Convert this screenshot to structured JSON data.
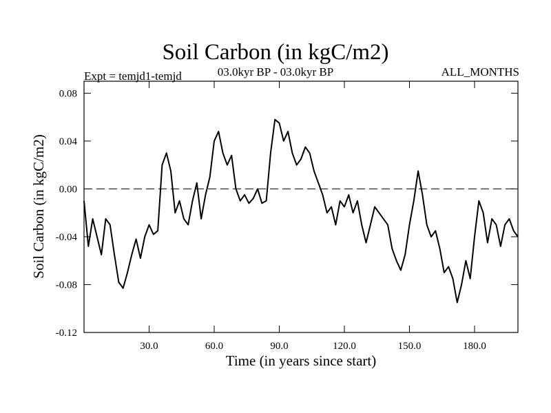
{
  "chart_data": {
    "type": "line",
    "title": "Soil Carbon (in kgC/m2)",
    "subtitle_left": "Expt = temjd1-temjd",
    "subtitle_center": "03.0kyr BP - 03.0kyr BP",
    "subtitle_right": "ALL_MONTHS",
    "xlabel": "Time (in years since start)",
    "ylabel": "Soil Carbon (in kgC/m2)",
    "xlim": [
      0,
      200
    ],
    "ylim": [
      -0.12,
      0.09
    ],
    "x_ticks": [
      30,
      60,
      90,
      120,
      150,
      180
    ],
    "x_tick_labels": [
      "30.0",
      "60.0",
      "90.0",
      "120.0",
      "150.0",
      "180.0"
    ],
    "y_ticks": [
      -0.12,
      -0.08,
      -0.04,
      0.0,
      0.04,
      0.08
    ],
    "y_tick_labels": [
      "-0.12",
      "-0.08",
      "-0.04",
      "0.00",
      "0.04",
      "0.08"
    ],
    "reference_line": {
      "y": 0.0,
      "style": "dashed"
    },
    "series": [
      {
        "color": "#000000",
        "points": [
          [
            0,
            -0.01
          ],
          [
            2,
            -0.048
          ],
          [
            4,
            -0.025
          ],
          [
            6,
            -0.04
          ],
          [
            8,
            -0.055
          ],
          [
            10,
            -0.025
          ],
          [
            12,
            -0.03
          ],
          [
            14,
            -0.055
          ],
          [
            16,
            -0.078
          ],
          [
            18,
            -0.083
          ],
          [
            20,
            -0.07
          ],
          [
            22,
            -0.055
          ],
          [
            24,
            -0.042
          ],
          [
            26,
            -0.058
          ],
          [
            28,
            -0.04
          ],
          [
            30,
            -0.03
          ],
          [
            32,
            -0.038
          ],
          [
            34,
            -0.035
          ],
          [
            36,
            0.02
          ],
          [
            38,
            0.03
          ],
          [
            40,
            0.015
          ],
          [
            42,
            -0.02
          ],
          [
            44,
            -0.01
          ],
          [
            46,
            -0.025
          ],
          [
            48,
            -0.03
          ],
          [
            50,
            -0.01
          ],
          [
            52,
            0.005
          ],
          [
            54,
            -0.025
          ],
          [
            56,
            -0.005
          ],
          [
            58,
            0.01
          ],
          [
            60,
            0.04
          ],
          [
            62,
            0.048
          ],
          [
            64,
            0.03
          ],
          [
            66,
            0.02
          ],
          [
            68,
            0.028
          ],
          [
            70,
            0.0
          ],
          [
            72,
            -0.01
          ],
          [
            74,
            -0.005
          ],
          [
            76,
            -0.012
          ],
          [
            78,
            -0.008
          ],
          [
            80,
            0.0
          ],
          [
            82,
            -0.012
          ],
          [
            84,
            -0.01
          ],
          [
            86,
            0.03
          ],
          [
            88,
            0.058
          ],
          [
            90,
            0.055
          ],
          [
            92,
            0.04
          ],
          [
            94,
            0.048
          ],
          [
            96,
            0.03
          ],
          [
            98,
            0.02
          ],
          [
            100,
            0.025
          ],
          [
            102,
            0.035
          ],
          [
            104,
            0.03
          ],
          [
            106,
            0.015
          ],
          [
            108,
            0.005
          ],
          [
            110,
            -0.005
          ],
          [
            112,
            -0.02
          ],
          [
            114,
            -0.015
          ],
          [
            116,
            -0.03
          ],
          [
            118,
            -0.01
          ],
          [
            120,
            -0.015
          ],
          [
            122,
            -0.005
          ],
          [
            124,
            -0.02
          ],
          [
            126,
            -0.01
          ],
          [
            128,
            -0.03
          ],
          [
            130,
            -0.045
          ],
          [
            132,
            -0.03
          ],
          [
            134,
            -0.015
          ],
          [
            136,
            -0.02
          ],
          [
            138,
            -0.025
          ],
          [
            140,
            -0.03
          ],
          [
            142,
            -0.05
          ],
          [
            144,
            -0.06
          ],
          [
            146,
            -0.068
          ],
          [
            148,
            -0.055
          ],
          [
            150,
            -0.03
          ],
          [
            152,
            -0.01
          ],
          [
            154,
            0.015
          ],
          [
            156,
            -0.005
          ],
          [
            158,
            -0.03
          ],
          [
            160,
            -0.04
          ],
          [
            162,
            -0.035
          ],
          [
            164,
            -0.05
          ],
          [
            166,
            -0.07
          ],
          [
            168,
            -0.065
          ],
          [
            170,
            -0.075
          ],
          [
            172,
            -0.095
          ],
          [
            174,
            -0.08
          ],
          [
            176,
            -0.06
          ],
          [
            178,
            -0.075
          ],
          [
            180,
            -0.04
          ],
          [
            182,
            -0.01
          ],
          [
            184,
            -0.02
          ],
          [
            186,
            -0.045
          ],
          [
            188,
            -0.025
          ],
          [
            190,
            -0.03
          ],
          [
            192,
            -0.048
          ],
          [
            194,
            -0.03
          ],
          [
            196,
            -0.025
          ],
          [
            198,
            -0.035
          ],
          [
            200,
            -0.04
          ]
        ]
      }
    ],
    "grid": false
  }
}
